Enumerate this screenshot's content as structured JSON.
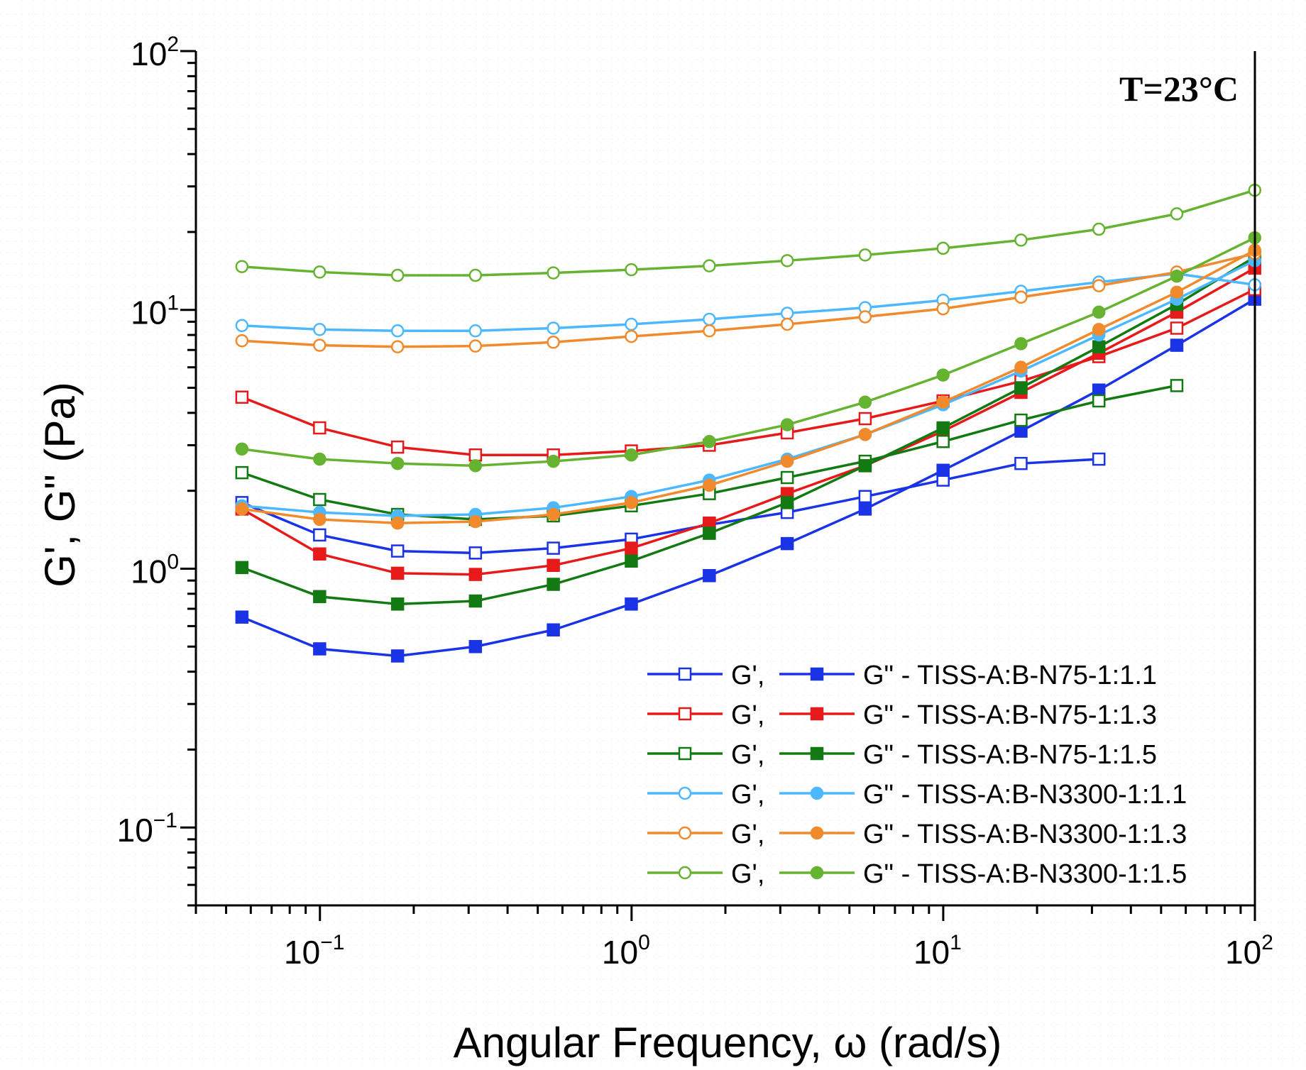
{
  "chart_data": {
    "type": "line",
    "title": "",
    "xlabel": "Angular Frequency, ω (rad/s)",
    "ylabel": "G', G\" (Pa)",
    "xscale": "log",
    "yscale": "log",
    "xlim": [
      0.04,
      100
    ],
    "ylim": [
      0.05,
      100
    ],
    "x_ticks": [
      {
        "value": 0.1,
        "base": "10",
        "exp": "−1"
      },
      {
        "value": 1,
        "base": "10",
        "exp": "0"
      },
      {
        "value": 10,
        "base": "10",
        "exp": "1"
      },
      {
        "value": 100,
        "base": "10",
        "exp": "2"
      }
    ],
    "y_ticks": [
      {
        "value": 0.1,
        "base": "10",
        "exp": "−1"
      },
      {
        "value": 1,
        "base": "10",
        "exp": "0"
      },
      {
        "value": 10,
        "base": "10",
        "exp": "1"
      },
      {
        "value": 100,
        "base": "10",
        "exp": "2"
      }
    ],
    "annotation": "T=23°C",
    "legend_position": "bottom-right",
    "x": [
      0.0562,
      0.0998,
      0.1775,
      0.3155,
      0.561,
      0.998,
      1.776,
      3.158,
      5.616,
      9.988,
      17.76,
      31.58,
      56.16,
      99.88
    ],
    "series": [
      {
        "name": "G' - TISS-A:B-N75-1:1.1",
        "legend_label": "G',",
        "modulus": "storage",
        "color": "#1a33e6",
        "marker": "square",
        "filled": false,
        "values": [
          1.8,
          1.35,
          1.17,
          1.15,
          1.2,
          1.3,
          1.48,
          1.65,
          1.9,
          2.2,
          2.55,
          2.65,
          null,
          null
        ]
      },
      {
        "name": "G\" - TISS-A:B-N75-1:1.1",
        "legend_label": "G\" - TISS-A:B-N75-1:1.1",
        "modulus": "loss",
        "color": "#1a33e6",
        "marker": "square",
        "filled": true,
        "values": [
          0.65,
          0.49,
          0.46,
          0.5,
          0.58,
          0.73,
          0.94,
          1.25,
          1.7,
          2.4,
          3.4,
          4.9,
          7.3,
          11
        ]
      },
      {
        "name": "G' - TISS-A:B-N75-1:1.3",
        "legend_label": "G',",
        "modulus": "storage",
        "color": "#e61a1a",
        "marker": "square",
        "filled": false,
        "values": [
          4.6,
          3.5,
          2.95,
          2.75,
          2.75,
          2.85,
          3.0,
          3.35,
          3.8,
          4.45,
          5.3,
          6.6,
          8.5,
          12
        ]
      },
      {
        "name": "G\" - TISS-A:B-N75-1:1.3",
        "legend_label": "G\" - TISS-A:B-N75-1:1.3",
        "modulus": "loss",
        "color": "#e61a1a",
        "marker": "square",
        "filled": true,
        "values": [
          1.7,
          1.14,
          0.96,
          0.95,
          1.03,
          1.2,
          1.5,
          1.95,
          2.5,
          3.4,
          4.8,
          6.8,
          9.8,
          14.5
        ]
      },
      {
        "name": "G' - TISS-A:B-N75-1:1.5",
        "legend_label": "G',",
        "modulus": "storage",
        "color": "#137a13",
        "marker": "square",
        "filled": false,
        "values": [
          2.35,
          1.85,
          1.62,
          1.55,
          1.6,
          1.75,
          1.95,
          2.25,
          2.6,
          3.1,
          3.75,
          4.45,
          5.1,
          null
        ]
      },
      {
        "name": "G\" - TISS-A:B-N75-1:1.5",
        "legend_label": "G\" - TISS-A:B-N75-1:1.5",
        "modulus": "loss",
        "color": "#137a13",
        "marker": "square",
        "filled": true,
        "values": [
          1.01,
          0.78,
          0.73,
          0.75,
          0.87,
          1.07,
          1.37,
          1.8,
          2.5,
          3.5,
          5.0,
          7.2,
          10.5,
          16
        ]
      },
      {
        "name": "G' - TISS-A:B-N3300-1:1.1",
        "legend_label": "G',",
        "modulus": "storage",
        "color": "#4db8ff",
        "marker": "circle",
        "filled": false,
        "values": [
          8.7,
          8.4,
          8.3,
          8.3,
          8.5,
          8.8,
          9.2,
          9.7,
          10.2,
          10.9,
          11.8,
          12.8,
          13.8,
          12.5
        ]
      },
      {
        "name": "G\" - TISS-A:B-N3300-1:1.1",
        "legend_label": "G\" - TISS-A:B-N3300-1:1.1",
        "modulus": "loss",
        "color": "#4db8ff",
        "marker": "circle",
        "filled": true,
        "values": [
          1.75,
          1.65,
          1.6,
          1.62,
          1.72,
          1.9,
          2.2,
          2.65,
          3.3,
          4.3,
          5.8,
          8.0,
          11.0,
          15.5
        ]
      },
      {
        "name": "G' - TISS-A:B-N3300-1:1.3",
        "legend_label": "G',",
        "modulus": "storage",
        "color": "#f08a2c",
        "marker": "circle",
        "filled": false,
        "values": [
          7.6,
          7.3,
          7.2,
          7.25,
          7.5,
          7.9,
          8.3,
          8.8,
          9.4,
          10.1,
          11.2,
          12.4,
          14.0,
          16.5
        ]
      },
      {
        "name": "G\" - TISS-A:B-N3300-1:1.3",
        "legend_label": "G\" - TISS-A:B-N3300-1:1.3",
        "modulus": "loss",
        "color": "#f08a2c",
        "marker": "circle",
        "filled": true,
        "values": [
          1.7,
          1.55,
          1.5,
          1.52,
          1.62,
          1.8,
          2.1,
          2.6,
          3.3,
          4.4,
          6.0,
          8.4,
          11.7,
          17
        ]
      },
      {
        "name": "G' - TISS-A:B-N3300-1:1.5",
        "legend_label": "G',",
        "modulus": "storage",
        "color": "#66b332",
        "marker": "circle",
        "filled": false,
        "values": [
          14.7,
          14.0,
          13.6,
          13.6,
          13.9,
          14.3,
          14.8,
          15.5,
          16.3,
          17.3,
          18.6,
          20.5,
          23.5,
          29
        ]
      },
      {
        "name": "G\" - TISS-A:B-N3300-1:1.5",
        "legend_label": "G\" - TISS-A:B-N3300-1:1.5",
        "modulus": "loss",
        "color": "#66b332",
        "marker": "circle",
        "filled": true,
        "values": [
          2.9,
          2.65,
          2.55,
          2.5,
          2.6,
          2.75,
          3.1,
          3.6,
          4.4,
          5.6,
          7.4,
          9.8,
          13.5,
          19
        ]
      }
    ]
  }
}
